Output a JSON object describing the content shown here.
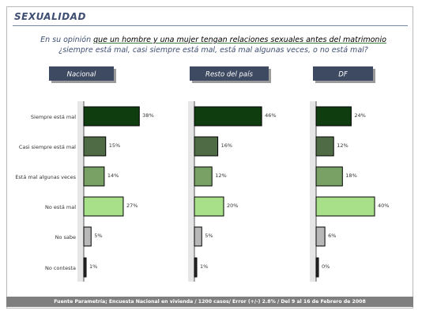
{
  "header": {
    "title": "SEXUALIDAD",
    "question_lead": "En su opinión ",
    "question_highlight": "que un hombre y una mujer tengan relaciones sexuales antes del matrimonio",
    "question_line2": "¿siempre está mal, casi siempre está mal, está mal algunas veces, o no está mal?"
  },
  "footer": {
    "source": "Fuente Parametría; Encuesta Nacional en vivienda / 1200 casos/ Error (+/-) 2.8% / Del 9 al 16 de Febrero de 2008"
  },
  "colors": {
    "title": "#3f4f73",
    "panel_header_bg": "#3e4a62",
    "bar_colors": [
      "#0f3d0f",
      "#4f6b45",
      "#79a065",
      "#a8e08a",
      "#b8b8b8",
      "#2a2a2a"
    ]
  },
  "chart_data": {
    "type": "bar",
    "orientation": "horizontal",
    "categories": [
      "Siempre está mal",
      "Casi siempre está mal",
      "Está mal algunas veces",
      "No está mal",
      "No sabe",
      "No contesta"
    ],
    "series": [
      {
        "name": "Nacional",
        "values": [
          38,
          15,
          14,
          27,
          5,
          1
        ],
        "labels": [
          "38%",
          "15%",
          "14%",
          "27%",
          "5%",
          "1%"
        ]
      },
      {
        "name": "Resto del país",
        "values": [
          46,
          16,
          12,
          20,
          5,
          1
        ],
        "labels": [
          "46%",
          "16%",
          "12%",
          "20%",
          "5%",
          "1%"
        ]
      },
      {
        "name": "DF",
        "values": [
          24,
          12,
          18,
          40,
          6,
          0
        ],
        "labels": [
          "24%",
          "12%",
          "18%",
          "40%",
          "6%",
          "0%"
        ]
      }
    ],
    "xlim": [
      0,
      50
    ],
    "grid": false,
    "legend": "none"
  }
}
